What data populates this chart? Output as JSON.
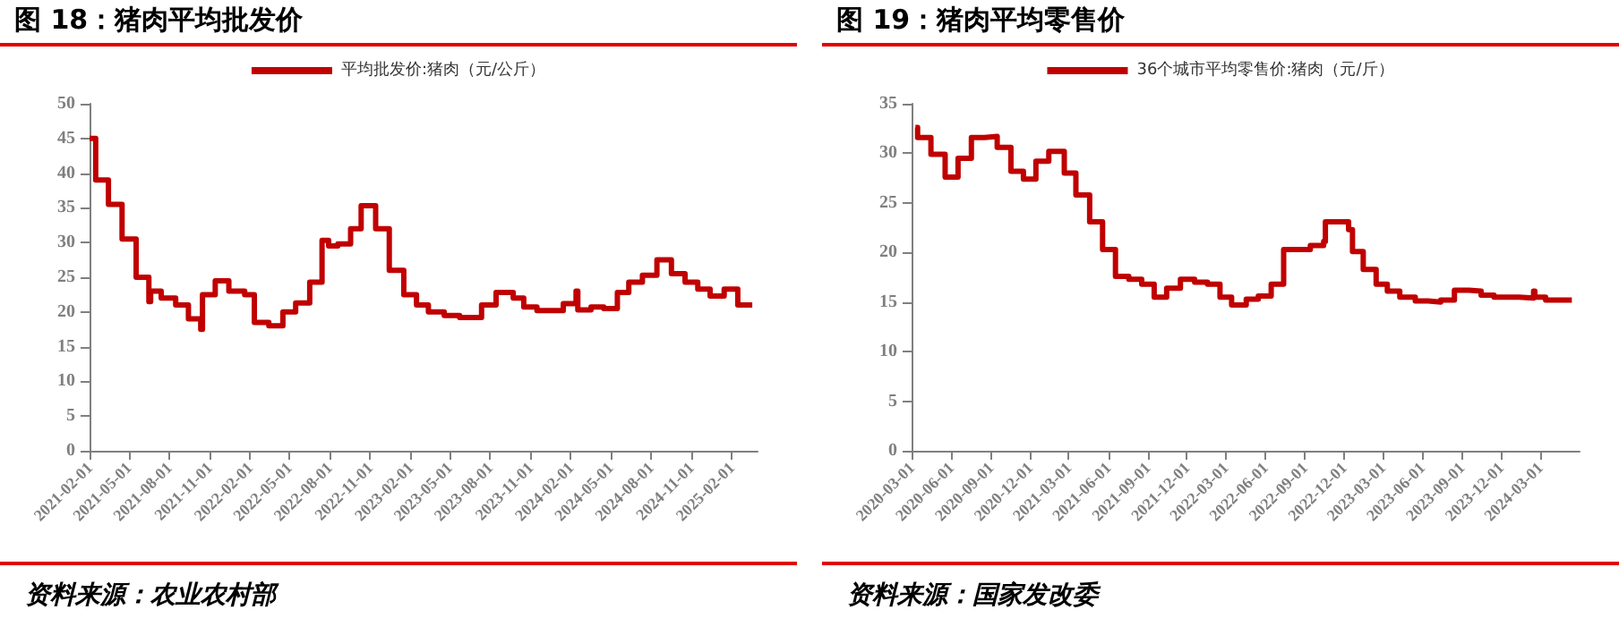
{
  "chart_data": [
    {
      "type": "step",
      "title": "图 18：猪肉平均批发价",
      "legend": "top",
      "grid": false,
      "marker": "none",
      "line_style": "solid",
      "x": [
        "2021-02-01",
        "2021-02-15",
        "2021-03-16",
        "2021-04-16",
        "2021-05-18",
        "2021-06-16",
        "2021-06-20",
        "2021-07-14",
        "2021-08-16",
        "2021-09-14",
        "2021-10-12",
        "2021-10-16",
        "2021-11-14",
        "2021-12-15",
        "2022-01-20",
        "2022-02-11",
        "2022-03-16",
        "2022-04-17",
        "2022-05-16",
        "2022-06-17",
        "2022-07-15",
        "2022-07-30",
        "2022-08-20",
        "2022-09-18",
        "2022-10-12",
        "2022-11-14",
        "2022-12-15",
        "2023-01-17",
        "2023-02-15",
        "2023-03-14",
        "2023-04-19",
        "2023-05-24",
        "2023-07-13",
        "2023-08-15",
        "2023-09-23",
        "2023-10-17",
        "2023-11-16",
        "2024-01-15",
        "2024-02-13",
        "2024-02-17",
        "2024-03-18",
        "2024-04-16",
        "2024-05-17",
        "2024-06-12",
        "2024-07-13",
        "2024-08-15",
        "2024-09-17",
        "2024-10-18",
        "2024-11-16",
        "2024-12-14",
        "2025-01-15",
        "2025-02-15",
        "2025-03-20"
      ],
      "series": [
        {
          "name": "平均批发价:猪肉（元/公斤）",
          "color": "#c00000",
          "values": [
            45,
            39,
            35.5,
            30.5,
            25,
            21.5,
            23,
            22,
            21,
            19,
            17.5,
            22.5,
            24.5,
            23,
            22.5,
            18.5,
            18,
            20,
            21.3,
            24.3,
            30.3,
            29.5,
            29.8,
            32,
            35.3,
            32,
            26,
            22.5,
            21,
            20,
            19.5,
            19.2,
            21,
            22.8,
            22,
            20.7,
            20.2,
            21.2,
            23,
            20.3,
            20.7,
            20.5,
            22.8,
            24.3,
            25.3,
            27.5,
            25.5,
            24.3,
            23.3,
            22.3,
            23.3,
            21,
            21
          ]
        }
      ],
      "xlim": [
        "2021-02-01",
        "2025-04-01"
      ],
      "xticks": [
        "2021-02-01",
        "2021-05-01",
        "2021-08-01",
        "2021-11-01",
        "2022-02-01",
        "2022-05-01",
        "2022-08-01",
        "2022-11-01",
        "2023-02-01",
        "2023-05-01",
        "2023-08-01",
        "2023-11-01",
        "2024-02-01",
        "2024-05-01",
        "2024-08-01",
        "2024-11-01",
        "2025-02-01"
      ],
      "ylim": [
        0,
        50
      ],
      "yticks": [
        0,
        5,
        10,
        15,
        20,
        25,
        30,
        35,
        40,
        45,
        50
      ],
      "annotations": [
        "资料来源：农业农村部"
      ]
    },
    {
      "type": "step",
      "title": "图 19：猪肉平均零售价",
      "legend": "top",
      "grid": false,
      "marker": "none",
      "line_style": "solid",
      "x": [
        "2020-03-10",
        "2020-03-15",
        "2020-04-15",
        "2020-05-18",
        "2020-06-17",
        "2020-07-18",
        "2020-08-18",
        "2020-09-16",
        "2020-10-18",
        "2020-11-16",
        "2020-12-15",
        "2021-01-14",
        "2021-02-19",
        "2021-03-18",
        "2021-04-19",
        "2021-05-19",
        "2021-06-18",
        "2021-07-19",
        "2021-08-18",
        "2021-09-16",
        "2021-10-15",
        "2021-11-16",
        "2021-12-19",
        "2022-01-18",
        "2022-02-16",
        "2022-03-15",
        "2022-04-18",
        "2022-05-16",
        "2022-06-15",
        "2022-07-14",
        "2022-09-14",
        "2022-10-15",
        "2022-10-19",
        "2022-12-12",
        "2022-12-21",
        "2023-01-15",
        "2023-02-14",
        "2023-03-12",
        "2023-04-10",
        "2023-05-16",
        "2023-06-15",
        "2023-07-14",
        "2023-08-15",
        "2023-09-18",
        "2023-10-16",
        "2023-11-15",
        "2024-01-12",
        "2024-02-15",
        "2024-02-18",
        "2024-03-14",
        "2024-05-14"
      ],
      "series": [
        {
          "name": "36个城市平均零售价:猪肉（元/斤）",
          "color": "#c00000",
          "values": [
            32.6,
            31.6,
            29.9,
            27.6,
            29.5,
            31.6,
            31.7,
            30.6,
            28.2,
            27.4,
            29.2,
            30.2,
            28,
            25.8,
            23.1,
            20.3,
            17.6,
            17.3,
            16.8,
            15.5,
            16.4,
            17.3,
            17,
            16.8,
            15.5,
            14.7,
            15.3,
            15.6,
            16.8,
            20.3,
            20.7,
            21.1,
            23.1,
            22.3,
            20.1,
            18.3,
            16.8,
            16.1,
            15.5,
            15.1,
            15,
            15.2,
            16.2,
            16.1,
            15.7,
            15.5,
            15.4,
            16.1,
            15.5,
            15.2,
            15.1
          ]
        }
      ],
      "xlim": [
        "2020-03-01",
        "2024-06-01"
      ],
      "xticks": [
        "2020-03-01",
        "2020-06-01",
        "2020-09-01",
        "2020-12-01",
        "2021-03-01",
        "2021-06-01",
        "2021-09-01",
        "2021-12-01",
        "2022-03-01",
        "2022-06-01",
        "2022-09-01",
        "2022-12-01",
        "2023-03-01",
        "2023-06-01",
        "2023-09-01",
        "2023-12-01",
        "2024-03-01"
      ],
      "ylim": [
        0,
        35
      ],
      "yticks": [
        0,
        5,
        10,
        15,
        20,
        25,
        30,
        35
      ],
      "annotations": [
        "资料来源：国家发改委"
      ]
    }
  ]
}
